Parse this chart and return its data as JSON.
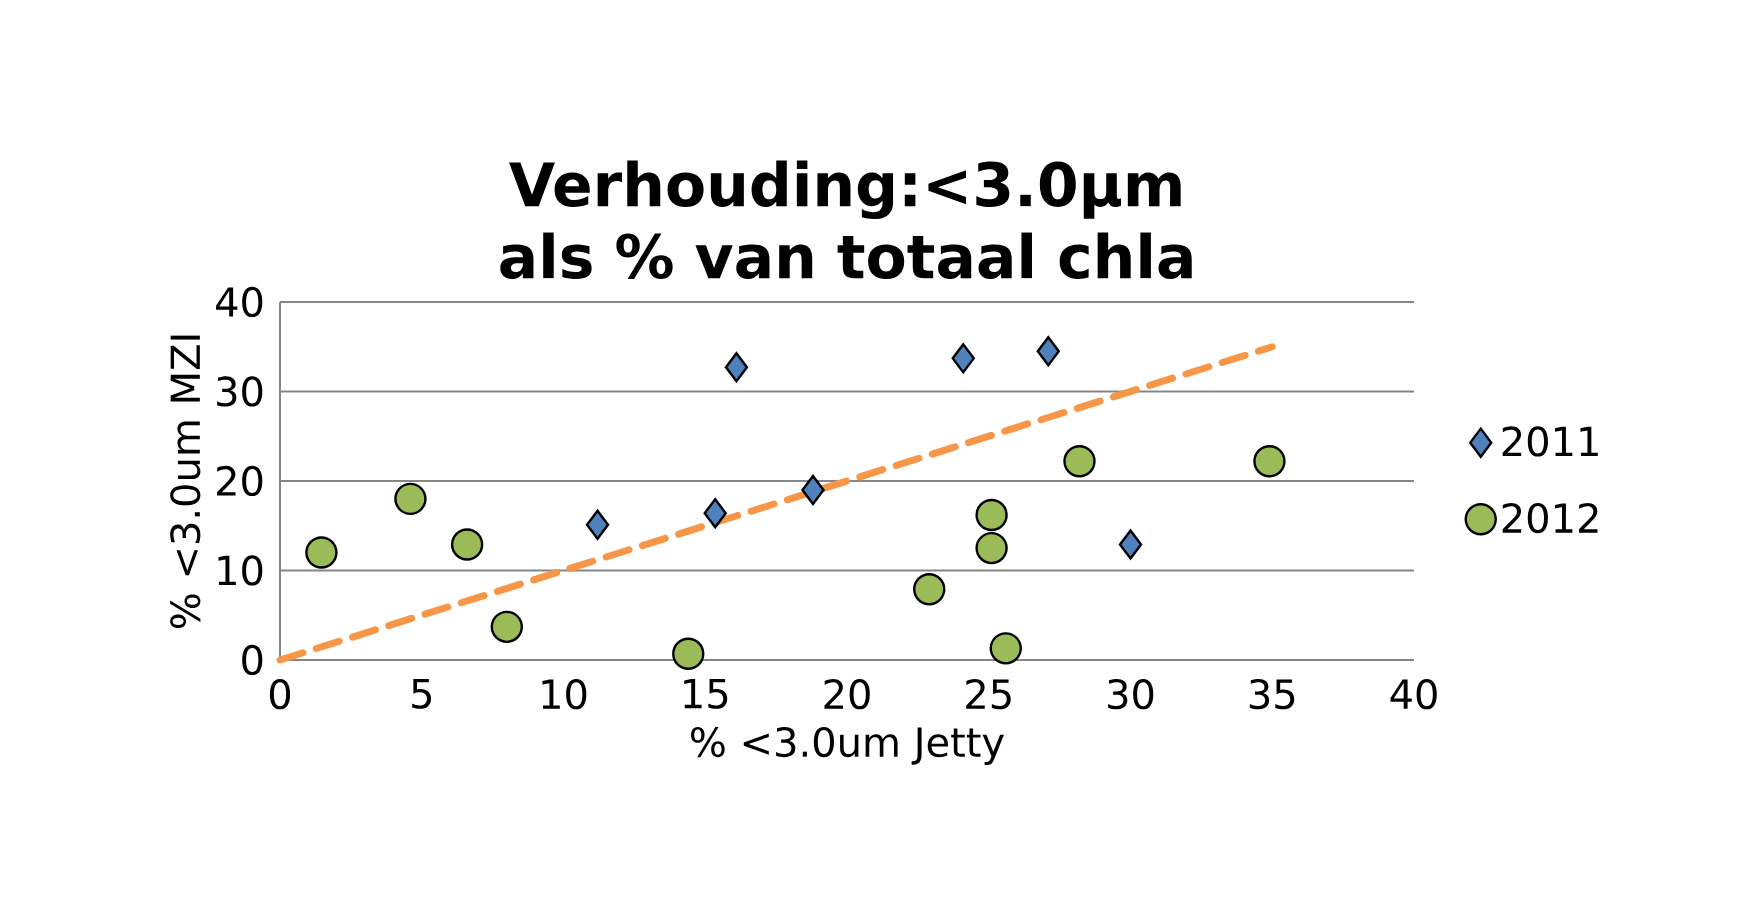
{
  "chart_data": {
    "type": "scatter",
    "title": "Verhouding:<3.0µm als % van totaal chla",
    "xlabel": "% <3.0um Jetty",
    "ylabel": "% <3.0um MZI",
    "xlim": [
      0,
      40
    ],
    "xticks": [
      0,
      5,
      10,
      15,
      20,
      25,
      30,
      35,
      40
    ],
    "ylim": [
      0,
      40
    ],
    "yticks": [
      0,
      10,
      20,
      30,
      40
    ],
    "grid": "y",
    "legend": "right",
    "series": [
      {
        "name": "2011",
        "color": "#4f81bd",
        "marker": "diamond",
        "x": [
          11.2,
          15.35,
          16.1,
          18.8,
          24.1,
          27.1,
          30.0
        ],
        "values": [
          15.1,
          16.4,
          32.7,
          19.0,
          33.7,
          34.5,
          12.9
        ]
      },
      {
        "name": "2012",
        "color": "#9bbb59",
        "marker": "circle",
        "x": [
          1.46,
          4.6,
          6.6,
          8.0,
          14.4,
          22.9,
          25.1,
          25.1,
          25.6,
          28.2,
          34.9
        ],
        "values": [
          12.0,
          18.0,
          12.9,
          3.7,
          0.7,
          7.9,
          16.2,
          12.5,
          1.3,
          22.2,
          22.2
        ]
      },
      {
        "type": "line",
        "color": "#f79646",
        "marker": "none",
        "line_style": "dashed",
        "x": [
          0,
          35
        ],
        "values": [
          0,
          35
        ]
      }
    ]
  }
}
